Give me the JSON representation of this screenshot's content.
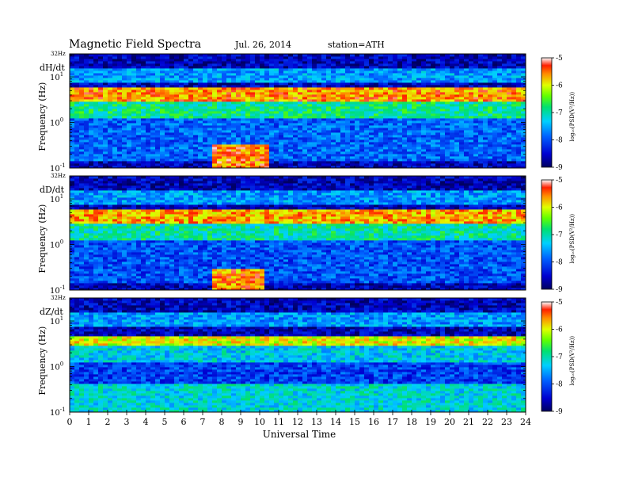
{
  "header": {
    "title": "Magnetic  Field  Spectra",
    "date": "Jul.  26, 2014",
    "station": "station=ATH"
  },
  "chart_data": [
    {
      "type": "heatmap",
      "component": "dH/dt",
      "top_label": "32Hz",
      "ylabel": "Frequency  (Hz)",
      "y_scale": "log",
      "ylim": [
        0.1,
        32
      ],
      "y_ticks": [
        {
          "value": 10,
          "base": "10",
          "exp": "1"
        },
        {
          "value": 1,
          "base": "10",
          "exp": "0"
        },
        {
          "value": 0.1,
          "base": "10",
          "exp": "-1"
        }
      ],
      "xlim": [
        0,
        24
      ],
      "colorbar": {
        "label": "log10(PSD(V^2/Hz))",
        "label_display": "log₁₀(PSD(V²/Hz))",
        "min": -9,
        "max": -5,
        "ticks": [
          -5,
          -6,
          -7,
          -8,
          -9
        ]
      },
      "features": [
        {
          "kind": "band",
          "f_low": 3,
          "f_high": 6,
          "t_start": 0,
          "t_end": 24,
          "level": -5.6
        },
        {
          "kind": "band",
          "f_low": 1.2,
          "f_high": 3,
          "t_start": 0,
          "t_end": 24,
          "level": -6.9
        },
        {
          "kind": "band",
          "f_low": 0.15,
          "f_high": 1.2,
          "t_start": 0,
          "t_end": 24,
          "level": -7.9
        },
        {
          "kind": "burst",
          "f_low": 0.1,
          "f_high": 0.35,
          "t_start": 7.5,
          "t_end": 10.5,
          "level": -5.5
        }
      ]
    },
    {
      "type": "heatmap",
      "component": "dD/dt",
      "top_label": "32Hz",
      "ylabel": "Frequency  (Hz)",
      "y_scale": "log",
      "ylim": [
        0.1,
        32
      ],
      "y_ticks": [
        {
          "value": 10,
          "base": "10",
          "exp": "1"
        },
        {
          "value": 1,
          "base": "10",
          "exp": "0"
        },
        {
          "value": 0.1,
          "base": "10",
          "exp": "-1"
        }
      ],
      "xlim": [
        0,
        24
      ],
      "colorbar": {
        "label": "log10(PSD(V^2/Hz))",
        "label_display": "log₁₀(PSD(V²/Hz))",
        "min": -9,
        "max": -5,
        "ticks": [
          -5,
          -6,
          -7,
          -8,
          -9
        ]
      },
      "features": [
        {
          "kind": "band",
          "f_low": 3,
          "f_high": 6,
          "t_start": 0,
          "t_end": 24,
          "level": -5.7
        },
        {
          "kind": "band",
          "f_low": 1.2,
          "f_high": 3,
          "t_start": 0,
          "t_end": 24,
          "level": -7.0
        },
        {
          "kind": "band",
          "f_low": 0.15,
          "f_high": 1.2,
          "t_start": 0,
          "t_end": 24,
          "level": -8.0
        },
        {
          "kind": "burst",
          "f_low": 0.1,
          "f_high": 0.3,
          "t_start": 7.5,
          "t_end": 10.2,
          "level": -5.6
        }
      ]
    },
    {
      "type": "heatmap",
      "component": "dZ/dt",
      "top_label": "32Hz",
      "ylabel": "Frequency  (Hz)",
      "y_scale": "log",
      "ylim": [
        0.1,
        32
      ],
      "y_ticks": [
        {
          "value": 10,
          "base": "10",
          "exp": "1"
        },
        {
          "value": 1,
          "base": "10",
          "exp": "0"
        },
        {
          "value": 0.1,
          "base": "10",
          "exp": "-1"
        }
      ],
      "xlim": [
        0,
        24
      ],
      "colorbar": {
        "label": "log10(PSD(V^2/Hz))",
        "label_display": "log₁₀(PSD(V²/Hz))",
        "min": -9,
        "max": -5,
        "ticks": [
          -5,
          -6,
          -7,
          -8,
          -9
        ]
      },
      "features": [
        {
          "kind": "band",
          "f_low": 3,
          "f_high": 4.5,
          "t_start": 0,
          "t_end": 24,
          "level": -6.0
        },
        {
          "kind": "band",
          "f_low": 1.3,
          "f_high": 3,
          "t_start": 0,
          "t_end": 24,
          "level": -7.3
        },
        {
          "kind": "band",
          "f_low": 0.4,
          "f_high": 1.3,
          "t_start": 0,
          "t_end": 24,
          "level": -8.1
        },
        {
          "kind": "band",
          "f_low": 0.1,
          "f_high": 0.4,
          "t_start": 0,
          "t_end": 24,
          "level": -7.2
        }
      ]
    }
  ],
  "x_axis": {
    "label": "Universal Time",
    "ticks": [
      "0",
      "1",
      "2",
      "3",
      "4",
      "5",
      "6",
      "7",
      "8",
      "9",
      "10",
      "11",
      "12",
      "13",
      "14",
      "15",
      "16",
      "17",
      "18",
      "19",
      "20",
      "21",
      "22",
      "23",
      "24"
    ]
  }
}
